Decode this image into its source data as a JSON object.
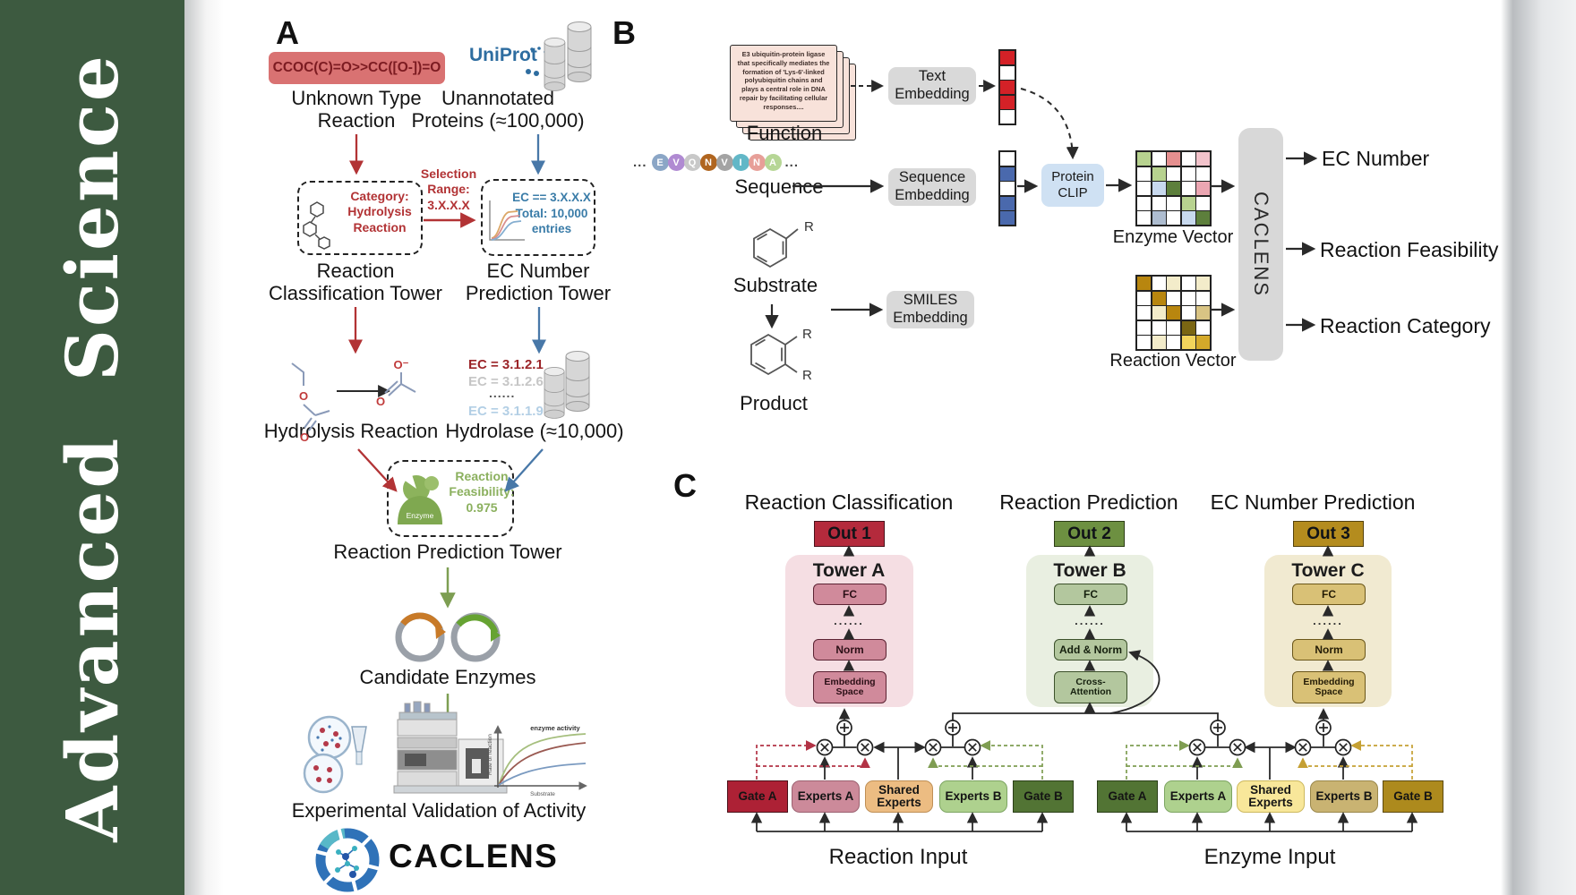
{
  "journal": {
    "name": "Advanced Science"
  },
  "panel_a": {
    "label": "A",
    "smiles": "CCOC(C)=O>>CC([O-])=O",
    "uniprot": "UniProt",
    "unknown_type": "Unknown Type\nReaction",
    "unannotated": "Unannotated\nProteins (≈100,000)",
    "category_box": "Category:\nHydrolysis\nReaction",
    "selection_range": "Selection\nRange:\n3.X.X.X",
    "ec_filter": "EC == 3.X.X.X\nTotal: 10,000\nentries",
    "tower_classification": "Reaction\nClassification Tower",
    "tower_ec": "EC Number\nPrediction Tower",
    "ec_list": [
      {
        "text": "EC = 3.1.2.1",
        "color": "#9b2428"
      },
      {
        "text": "EC = 3.1.2.6",
        "color": "#c6c6c6"
      },
      {
        "text": "......",
        "color": "#555555"
      },
      {
        "text": "EC = 3.1.1.9",
        "color": "#b3cfe5"
      }
    ],
    "hydrolysis_reaction": "Hydrolysis Reaction",
    "hydrolase": "Hydrolase (≈10,000)",
    "enzyme_badge": "Enzyme",
    "feasibility": "Reaction\nFeasibility:\n0.975",
    "tower_reaction_prediction": "Reaction Prediction Tower",
    "candidate_enzymes": "Candidate Enzymes",
    "mini_chart": {
      "title": "enzyme activity",
      "ylabel": "Rate of reaction",
      "xlabel": "Substrate"
    },
    "experimental_validation": "Experimental Validation of Activity",
    "logo_text": "CACLENS"
  },
  "panel_b": {
    "label": "B",
    "function_card": "E3 ubiquitin-protein ligase that specifically mediates the formation of 'Lys-6'-linked polyubiquitin chains and plays a central role in DNA repair by facilitating cellular responses....",
    "function_label": "Function",
    "ellipsis": "...",
    "residues": [
      {
        "letter": "E",
        "color": "#8ba6c6"
      },
      {
        "letter": "V",
        "color": "#b08ad2"
      },
      {
        "letter": "Q",
        "color": "#c8c8c8"
      },
      {
        "letter": "N",
        "color": "#b0651f"
      },
      {
        "letter": "V",
        "color": "#a3a3a3"
      },
      {
        "letter": "I",
        "color": "#62b7c7"
      },
      {
        "letter": "N",
        "color": "#e79f98"
      },
      {
        "letter": "A",
        "color": "#b6d695"
      }
    ],
    "sequence_label": "Sequence",
    "substrate_label": "Substrate",
    "product_label": "Product",
    "r_group": "R",
    "text_embedding": "Text\nEmbedding",
    "sequence_embedding": "Sequence\nEmbedding",
    "smiles_embedding": "SMILES\nEmbedding",
    "protein_clip": "Protein\nCLIP",
    "text_vector": [
      "#d42127",
      "#ffffff",
      "#d42127",
      "#d42127",
      "#ffffff"
    ],
    "sequence_vector": [
      "#ffffff",
      "#4a69ad",
      "#ffffff",
      "#4a69ad",
      "#4a69ad"
    ],
    "enzyme_matrix": [
      [
        "#b7d28f",
        "#ffffff",
        "#e58f8f",
        "#ffffff",
        "#f2c3cb"
      ],
      [
        "#ffffff",
        "#b7d28f",
        "#ffffff",
        "#ffffff",
        "#ffffff"
      ],
      [
        "#ffffff",
        "#c8d9ee",
        "#5d7f3c",
        "#ffffff",
        "#eba6b2"
      ],
      [
        "#ffffff",
        "#ffffff",
        "#ffffff",
        "#b7d28f",
        "#ffffff"
      ],
      [
        "#ffffff",
        "#aebdd0",
        "#ffffff",
        "#c8d9ee",
        "#5d7f3c"
      ]
    ],
    "reaction_matrix": [
      [
        "#b8860f",
        "#ffffff",
        "#f3ecca",
        "#ffffff",
        "#f3ecca"
      ],
      [
        "#ffffff",
        "#b8860f",
        "#ffffff",
        "#ffffff",
        "#ffffff"
      ],
      [
        "#ffffff",
        "#f3ecca",
        "#b8860f",
        "#ffffff",
        "#d9c484"
      ],
      [
        "#ffffff",
        "#ffffff",
        "#ffffff",
        "#7a6613",
        "#ffffff"
      ],
      [
        "#ffffff",
        "#f3ecca",
        "#ffffff",
        "#f2d45c",
        "#d4a92a"
      ]
    ],
    "enzyme_vector_label": "Enzyme Vector",
    "reaction_vector_label": "Reaction Vector",
    "caclens_bar": "CACLENS",
    "outputs": [
      "EC Number",
      "Reaction Feasibility",
      "Reaction Category"
    ]
  },
  "panel_c": {
    "label": "C",
    "columns": [
      {
        "title": "Reaction Classification",
        "out": "Out 1",
        "tower": "Tower A",
        "blocks": [
          "FC",
          "......",
          "Norm",
          "Embedding\nSpace"
        ]
      },
      {
        "title": "Reaction Prediction",
        "out": "Out 2",
        "tower": "Tower B",
        "blocks": [
          "FC",
          "......",
          "Add & Norm",
          "Cross-\nAttention"
        ]
      },
      {
        "title": "EC Number Prediction",
        "out": "Out 3",
        "tower": "Tower C",
        "blocks": [
          "FC",
          "......",
          "Norm",
          "Embedding\nSpace"
        ]
      }
    ],
    "moe_left": {
      "input_label": "Reaction Input",
      "boxes": [
        {
          "label": "Gate A",
          "bg": "#ad2135",
          "border": "#49111a"
        },
        {
          "label": "Experts A",
          "bg": "#cc8a9a",
          "border": "#9c6170"
        },
        {
          "label": "Shared\nExperts",
          "bg": "#ecbc82",
          "border": "#bf8f55"
        },
        {
          "label": "Experts B",
          "bg": "#aed18e",
          "border": "#7da562"
        },
        {
          "label": "Gate B",
          "bg": "#527434",
          "border": "#2b3f18"
        }
      ]
    },
    "moe_right": {
      "input_label": "Enzyme Input",
      "boxes": [
        {
          "label": "Gate A",
          "bg": "#527434",
          "border": "#2b3f18"
        },
        {
          "label": "Experts A",
          "bg": "#aed18e",
          "border": "#7da562"
        },
        {
          "label": "Shared\nExperts",
          "bg": "#f8e79a",
          "border": "#cdb95e"
        },
        {
          "label": "Experts B",
          "bg": "#c9b372",
          "border": "#9a874a"
        },
        {
          "label": "Gate B",
          "bg": "#ad8a1d",
          "border": "#5d4a0e"
        }
      ]
    }
  },
  "colors": {
    "sidebar_green": "#3d5a40",
    "smiles_box_bg": "#d97272",
    "smiles_text": "#7c1b21",
    "red_accent": "#b23335",
    "blue_accent": "#4878a8",
    "green_accent": "#7d9e52",
    "uniprot_blue": "#2e6da0",
    "embedding_box_bg": "#d9d9d9",
    "protein_clip_bg": "#cfe1f3",
    "out1_bg": "#b42a3c",
    "out2_bg": "#6d9041",
    "out3_bg": "#b48c1e",
    "tower_a_bg": "#f5dee3",
    "tower_b_bg": "#e9efe1",
    "tower_c_bg": "#f1ead1"
  }
}
